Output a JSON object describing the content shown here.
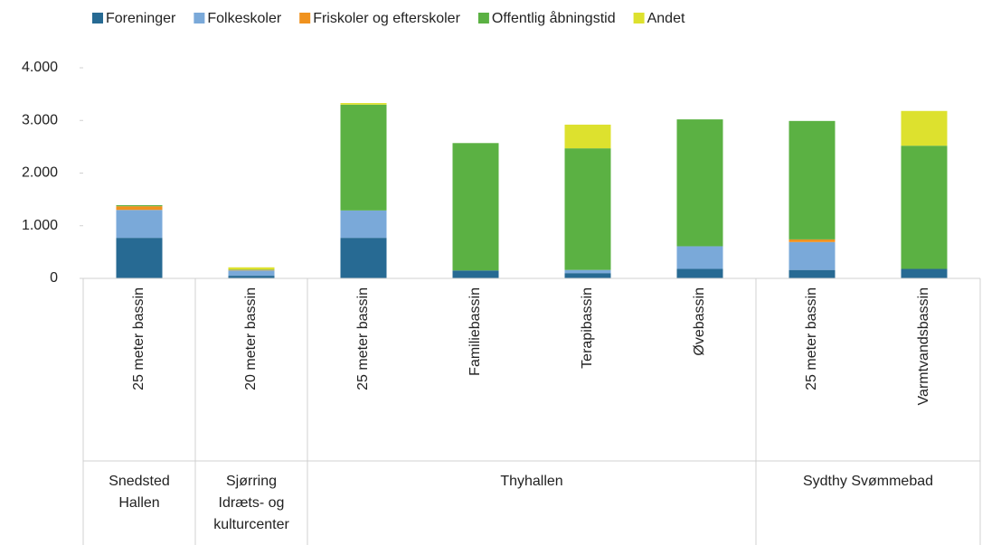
{
  "chart_data": {
    "type": "stacked_bar",
    "groups": [
      {
        "name": "Snedsted Hallen",
        "categories": [
          "25 meter bassin"
        ]
      },
      {
        "name": "Sjørring Idræts- og kulturcenter",
        "categories": [
          "20 meter bassin"
        ]
      },
      {
        "name": "Thyhallen",
        "categories": [
          "25 meter bassin",
          "Familiebassin",
          "Terapibassin",
          "Øvebassin"
        ]
      },
      {
        "name": "Sydthy Svømmebad",
        "categories": [
          "25 meter bassin",
          "Varmtvandsbassin"
        ]
      }
    ],
    "series": [
      {
        "name": "Foreninger",
        "color": "#276a93",
        "values": [
          770,
          50,
          770,
          150,
          100,
          180,
          160,
          180
        ]
      },
      {
        "name": "Folkeskoler",
        "color": "#7aa9d9",
        "values": [
          530,
          100,
          520,
          0,
          60,
          430,
          530,
          0
        ]
      },
      {
        "name": "Friskoler og efterskoler",
        "color": "#f0921e",
        "values": [
          70,
          10,
          0,
          0,
          0,
          0,
          50,
          0
        ]
      },
      {
        "name": "Offentlig åbningstid",
        "color": "#5bb143",
        "values": [
          20,
          10,
          2010,
          2420,
          2310,
          2410,
          2250,
          2340
        ]
      },
      {
        "name": "Andet",
        "color": "#dde12e",
        "values": [
          0,
          40,
          30,
          0,
          450,
          0,
          0,
          660
        ]
      }
    ],
    "ylim": [
      0,
      4000
    ],
    "yticks": [
      0,
      {
        "value": 1000,
        "label": "1.000"
      },
      {
        "value": 2000,
        "label": "2.000"
      },
      {
        "value": 3000,
        "label": "3.000"
      },
      {
        "value": 4000,
        "label": "4.000"
      }
    ],
    "legend": "top"
  }
}
